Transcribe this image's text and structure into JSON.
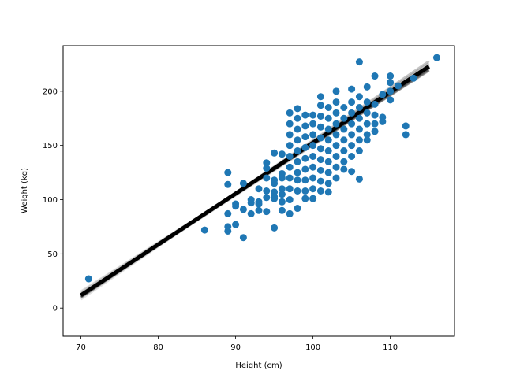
{
  "chart_data": {
    "type": "scatter",
    "title": "",
    "xlabel": "Height (cm)",
    "ylabel": "Weight (kg)",
    "xlim": [
      67.7,
      118.3
    ],
    "ylim": [
      -26,
      242
    ],
    "xticks": [
      70,
      80,
      90,
      100,
      110
    ],
    "yticks": [
      0,
      50,
      100,
      150,
      200
    ],
    "grid": false,
    "legend": "none",
    "colors": {
      "points": "#1f77b4",
      "lines": "#000000",
      "frame": "#000000"
    },
    "series": [
      {
        "kind": "scatter",
        "points": [
          [
            71,
            27
          ],
          [
            86,
            72
          ],
          [
            89,
            125
          ],
          [
            89,
            114
          ],
          [
            89,
            87
          ],
          [
            89,
            75
          ],
          [
            89,
            71
          ],
          [
            90,
            96
          ],
          [
            90,
            94
          ],
          [
            90,
            77
          ],
          [
            91,
            115
          ],
          [
            91,
            91
          ],
          [
            91,
            65
          ],
          [
            92,
            100
          ],
          [
            92,
            97
          ],
          [
            92,
            87
          ],
          [
            93,
            110
          ],
          [
            93,
            98
          ],
          [
            93,
            90
          ],
          [
            93,
            96
          ],
          [
            94,
            134
          ],
          [
            94,
            129
          ],
          [
            94,
            120
          ],
          [
            94,
            108
          ],
          [
            94,
            102
          ],
          [
            94,
            89
          ],
          [
            95,
            143
          ],
          [
            95,
            118
          ],
          [
            95,
            115
          ],
          [
            95,
            107
          ],
          [
            95,
            103
          ],
          [
            95,
            101
          ],
          [
            95,
            74
          ],
          [
            96,
            142
          ],
          [
            96,
            124
          ],
          [
            96,
            120
          ],
          [
            96,
            110
          ],
          [
            96,
            105
          ],
          [
            96,
            98
          ],
          [
            96,
            90
          ],
          [
            97,
            180
          ],
          [
            97,
            170
          ],
          [
            97,
            160
          ],
          [
            97,
            150
          ],
          [
            97,
            140
          ],
          [
            97,
            130
          ],
          [
            97,
            120
          ],
          [
            97,
            110
          ],
          [
            97,
            100
          ],
          [
            97,
            87
          ],
          [
            98,
            184
          ],
          [
            98,
            175
          ],
          [
            98,
            165
          ],
          [
            98,
            155
          ],
          [
            98,
            145
          ],
          [
            98,
            135
          ],
          [
            98,
            125
          ],
          [
            98,
            118
          ],
          [
            98,
            108
          ],
          [
            98,
            92
          ],
          [
            99,
            178
          ],
          [
            99,
            168
          ],
          [
            99,
            158
          ],
          [
            99,
            148
          ],
          [
            99,
            138
          ],
          [
            99,
            128
          ],
          [
            99,
            118
          ],
          [
            99,
            108
          ],
          [
            99,
            101
          ],
          [
            100,
            178
          ],
          [
            100,
            170
          ],
          [
            100,
            160
          ],
          [
            100,
            150
          ],
          [
            100,
            140
          ],
          [
            100,
            130
          ],
          [
            100,
            120
          ],
          [
            100,
            110
          ],
          [
            100,
            101
          ],
          [
            101,
            195
          ],
          [
            101,
            187
          ],
          [
            101,
            177
          ],
          [
            101,
            167
          ],
          [
            101,
            157
          ],
          [
            101,
            147
          ],
          [
            101,
            137
          ],
          [
            101,
            127
          ],
          [
            101,
            117
          ],
          [
            101,
            108
          ],
          [
            102,
            185
          ],
          [
            102,
            175
          ],
          [
            102,
            165
          ],
          [
            102,
            155
          ],
          [
            102,
            145
          ],
          [
            102,
            135
          ],
          [
            102,
            125
          ],
          [
            102,
            115
          ],
          [
            102,
            107
          ],
          [
            103,
            200
          ],
          [
            103,
            190
          ],
          [
            103,
            180
          ],
          [
            103,
            170
          ],
          [
            103,
            160
          ],
          [
            103,
            150
          ],
          [
            103,
            140
          ],
          [
            103,
            130
          ],
          [
            103,
            120
          ],
          [
            104,
            185
          ],
          [
            104,
            175
          ],
          [
            104,
            165
          ],
          [
            104,
            155
          ],
          [
            104,
            145
          ],
          [
            104,
            135
          ],
          [
            104,
            128
          ],
          [
            105,
            202
          ],
          [
            105,
            190
          ],
          [
            105,
            180
          ],
          [
            105,
            170
          ],
          [
            105,
            160
          ],
          [
            105,
            150
          ],
          [
            105,
            140
          ],
          [
            105,
            126
          ],
          [
            106,
            227
          ],
          [
            106,
            195
          ],
          [
            106,
            185
          ],
          [
            106,
            175
          ],
          [
            106,
            165
          ],
          [
            106,
            155
          ],
          [
            106,
            145
          ],
          [
            106,
            119
          ],
          [
            107,
            204
          ],
          [
            107,
            190
          ],
          [
            107,
            180
          ],
          [
            107,
            170
          ],
          [
            107,
            160
          ],
          [
            107,
            155
          ],
          [
            108,
            214
          ],
          [
            108,
            188
          ],
          [
            108,
            178
          ],
          [
            108,
            170
          ],
          [
            108,
            163
          ],
          [
            109,
            197
          ],
          [
            109,
            176
          ],
          [
            109,
            172
          ],
          [
            110,
            214
          ],
          [
            110,
            208
          ],
          [
            110,
            200
          ],
          [
            110,
            192
          ],
          [
            111,
            205
          ],
          [
            112,
            168
          ],
          [
            112,
            160
          ],
          [
            113,
            212
          ],
          [
            116,
            231
          ]
        ]
      },
      {
        "kind": "lines",
        "name": "",
        "x_range": [
          70,
          115
        ],
        "fits": [
          {
            "slope": 4.8,
            "intercept": -326.0
          },
          {
            "slope": 4.75,
            "intercept": -322.0
          },
          {
            "slope": 4.7,
            "intercept": -318.0
          },
          {
            "slope": 4.65,
            "intercept": -314.0
          },
          {
            "slope": 4.6,
            "intercept": -309.0
          },
          {
            "slope": 4.62,
            "intercept": -312.0
          },
          {
            "slope": 4.68,
            "intercept": -316.5
          },
          {
            "slope": 4.72,
            "intercept": -320.5
          },
          {
            "slope": 4.58,
            "intercept": -307.5
          },
          {
            "slope": 4.55,
            "intercept": -304.0
          },
          {
            "slope": 4.85,
            "intercept": -330.0
          },
          {
            "slope": 4.78,
            "intercept": -324.5
          },
          {
            "slope": 4.66,
            "intercept": -314.8
          },
          {
            "slope": 4.64,
            "intercept": -313.0
          },
          {
            "slope": 4.7,
            "intercept": -317.2
          },
          {
            "slope": 4.52,
            "intercept": -301.0
          },
          {
            "slope": 4.88,
            "intercept": -333.5
          },
          {
            "slope": 4.69,
            "intercept": -316.0
          },
          {
            "slope": 4.74,
            "intercept": -321.5
          },
          {
            "slope": 4.61,
            "intercept": -310.5
          }
        ]
      }
    ]
  }
}
